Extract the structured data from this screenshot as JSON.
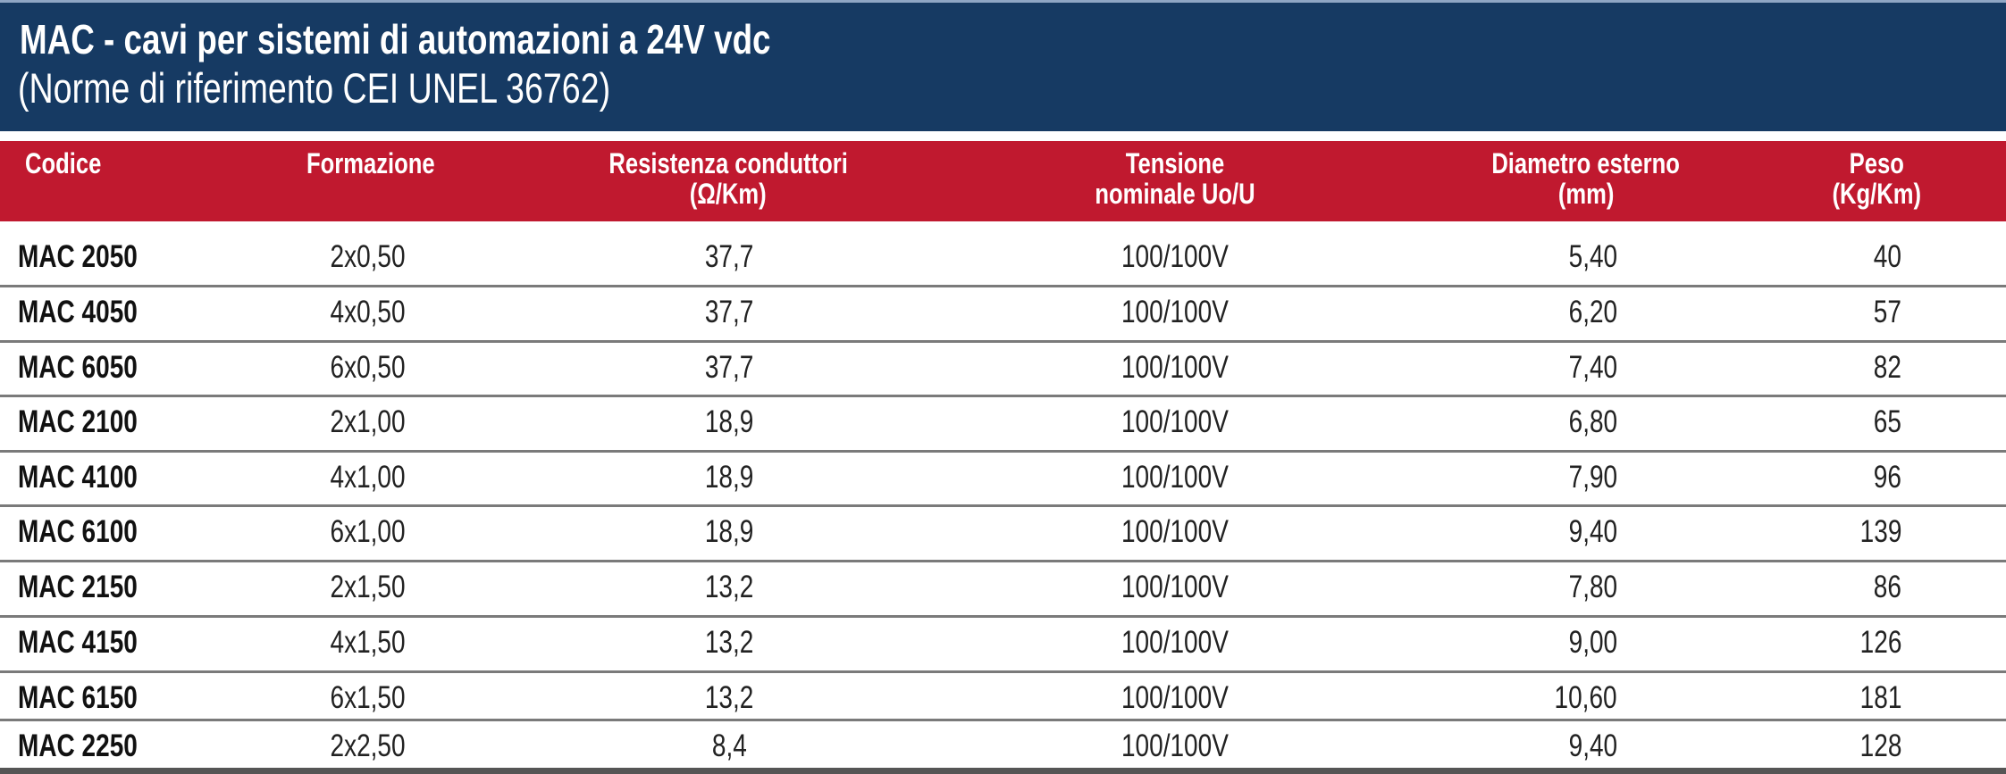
{
  "header": {
    "title": "MAC - cavi per sistemi di automazioni a 24V vdc",
    "subtitle": "(Norme di riferimento CEI UNEL 36762)"
  },
  "colors": {
    "title_bar": "#163a63",
    "header_row": "#c0192f"
  },
  "table": {
    "columns": [
      {
        "line1": "Codice",
        "line2": ""
      },
      {
        "line1": "Formazione",
        "line2": ""
      },
      {
        "line1": "Resistenza conduttori",
        "line2": "(Ω/Km)"
      },
      {
        "line1": "Tensione",
        "line2": "nominale Uo/U"
      },
      {
        "line1": "Diametro esterno",
        "line2": "(mm)"
      },
      {
        "line1": "Peso",
        "line2": "(Kg/Km)"
      }
    ],
    "rows": [
      [
        "MAC 2050",
        "2x0,50",
        "37,7",
        "100/100V",
        "5,40",
        "40"
      ],
      [
        "MAC 4050",
        "4x0,50",
        "37,7",
        "100/100V",
        "6,20",
        "57"
      ],
      [
        "MAC 6050",
        "6x0,50",
        "37,7",
        "100/100V",
        "7,40",
        "82"
      ],
      [
        "MAC 2100",
        "2x1,00",
        "18,9",
        "100/100V",
        "6,80",
        "65"
      ],
      [
        "MAC 4100",
        "4x1,00",
        "18,9",
        "100/100V",
        "7,90",
        "96"
      ],
      [
        "MAC 6100",
        "6x1,00",
        "18,9",
        "100/100V",
        "9,40",
        "139"
      ],
      [
        "MAC 2150",
        "2x1,50",
        "13,2",
        "100/100V",
        "7,80",
        "86"
      ],
      [
        "MAC 4150",
        "4x1,50",
        "13,2",
        "100/100V",
        "9,00",
        "126"
      ],
      [
        "MAC 6150",
        "6x1,50",
        "13,2",
        "100/100V",
        "10,60",
        "181"
      ],
      [
        "MAC 2250",
        "2x2,50",
        "8,4",
        "100/100V",
        "9,40",
        "128"
      ]
    ]
  }
}
